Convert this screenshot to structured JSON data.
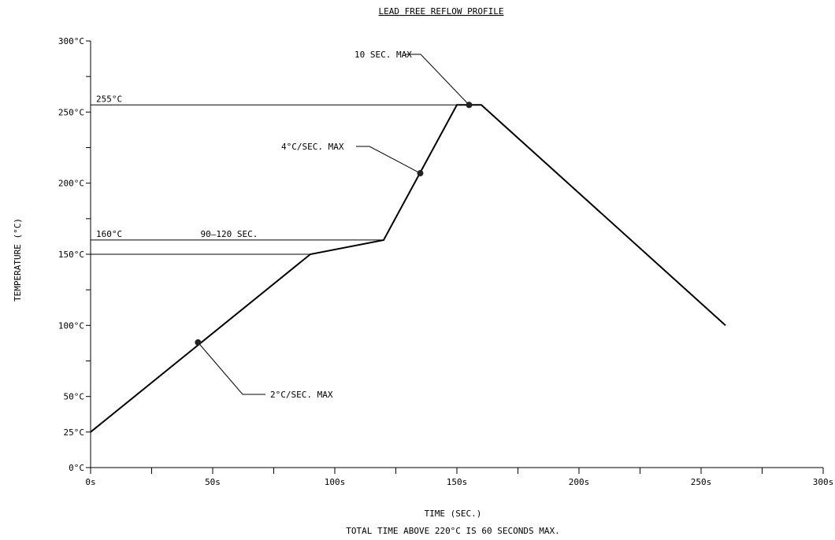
{
  "chart_data": {
    "type": "line",
    "title": "LEAD FREE REFLOW PROFILE",
    "xlabel": "TIME (SEC.)",
    "ylabel": "TEMPERATURE (°C)",
    "footnote": "TOTAL TIME ABOVE 220°C IS 60 SECONDS MAX.",
    "xlim": [
      0,
      300
    ],
    "ylim": [
      0,
      300
    ],
    "x_ticks": [
      {
        "value": 0,
        "label": "0s"
      },
      {
        "value": 50,
        "label": "50s"
      },
      {
        "value": 100,
        "label": "100s"
      },
      {
        "value": 150,
        "label": "150s"
      },
      {
        "value": 200,
        "label": "200s"
      },
      {
        "value": 250,
        "label": "250s"
      },
      {
        "value": 300,
        "label": "300s"
      }
    ],
    "x_minor_ticks": [
      25,
      75,
      125,
      175,
      225,
      275
    ],
    "y_ticks": [
      {
        "value": 0,
        "label": "0°C"
      },
      {
        "value": 25,
        "label": "25°C"
      },
      {
        "value": 50,
        "label": "50°C"
      },
      {
        "value": 100,
        "label": "100°C"
      },
      {
        "value": 150,
        "label": "150°C"
      },
      {
        "value": 200,
        "label": "200°C"
      },
      {
        "value": 250,
        "label": "250°C"
      },
      {
        "value": 300,
        "label": "300°C"
      }
    ],
    "y_minor_ticks": [
      75,
      125,
      175,
      225,
      275
    ],
    "series": [
      {
        "x": [
          0,
          90,
          120,
          150,
          160,
          260
        ],
        "y": [
          25,
          150,
          160,
          255,
          255,
          100
        ]
      }
    ],
    "reference_lines": [
      {
        "y": 255,
        "x_end": 150,
        "label": "255°C"
      },
      {
        "y": 160,
        "x_end": 120,
        "label": "160°C",
        "span_label": "90–120 SEC."
      },
      {
        "y": 150,
        "x_end": 90,
        "label": ""
      }
    ],
    "annotations": [
      {
        "label": "10 SEC. MAX",
        "point": [
          155,
          255
        ]
      },
      {
        "label": "4°C/SEC. MAX",
        "point": [
          135,
          207
        ]
      },
      {
        "label": "2°C/SEC. MAX",
        "point": [
          44,
          88
        ]
      }
    ]
  }
}
